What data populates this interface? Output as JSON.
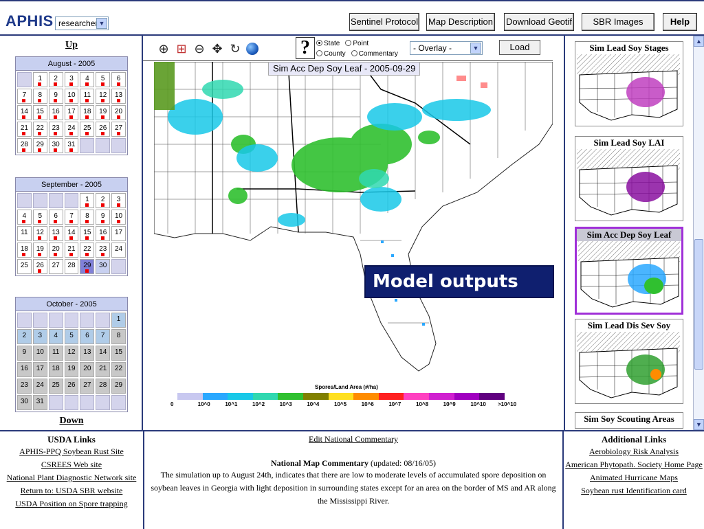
{
  "header": {
    "logo": "APHIS",
    "role_value": "researcher",
    "buttons": [
      "Sentinel Protocol",
      "Map Description",
      "Download Geotif",
      "SBR Images",
      "Help"
    ]
  },
  "left": {
    "up_label": "Up",
    "down_label": "Down",
    "calendars": [
      {
        "title": "August - 2005",
        "cells": [
          {
            "d": "",
            "t": "empty"
          },
          {
            "d": "1",
            "t": "day",
            "m": true
          },
          {
            "d": "2",
            "t": "day",
            "m": true
          },
          {
            "d": "3",
            "t": "day",
            "m": true
          },
          {
            "d": "4",
            "t": "day",
            "m": true
          },
          {
            "d": "5",
            "t": "day",
            "m": true
          },
          {
            "d": "6",
            "t": "day",
            "m": true
          },
          {
            "d": "7",
            "t": "day",
            "m": true
          },
          {
            "d": "8",
            "t": "day",
            "m": true
          },
          {
            "d": "9",
            "t": "day",
            "m": true
          },
          {
            "d": "10",
            "t": "day",
            "m": true
          },
          {
            "d": "11",
            "t": "day",
            "m": true
          },
          {
            "d": "12",
            "t": "day",
            "m": true
          },
          {
            "d": "13",
            "t": "day",
            "m": true
          },
          {
            "d": "14",
            "t": "day",
            "m": true
          },
          {
            "d": "15",
            "t": "day",
            "m": true
          },
          {
            "d": "16",
            "t": "day",
            "m": true
          },
          {
            "d": "17",
            "t": "day",
            "m": true
          },
          {
            "d": "18",
            "t": "day",
            "m": true
          },
          {
            "d": "19",
            "t": "day",
            "m": true
          },
          {
            "d": "20",
            "t": "day",
            "m": true
          },
          {
            "d": "21",
            "t": "day",
            "m": true
          },
          {
            "d": "22",
            "t": "day",
            "m": true
          },
          {
            "d": "23",
            "t": "day",
            "m": true
          },
          {
            "d": "24",
            "t": "day",
            "m": true
          },
          {
            "d": "25",
            "t": "day",
            "m": true
          },
          {
            "d": "26",
            "t": "day",
            "m": true
          },
          {
            "d": "27",
            "t": "day",
            "m": true
          },
          {
            "d": "28",
            "t": "day",
            "m": true
          },
          {
            "d": "29",
            "t": "day",
            "m": true
          },
          {
            "d": "30",
            "t": "day",
            "m": true
          },
          {
            "d": "31",
            "t": "day",
            "m": true
          },
          {
            "d": "",
            "t": "empty"
          },
          {
            "d": "",
            "t": "empty"
          },
          {
            "d": "",
            "t": "empty"
          }
        ]
      },
      {
        "title": "September - 2005",
        "cells": [
          {
            "d": "",
            "t": "empty"
          },
          {
            "d": "",
            "t": "empty"
          },
          {
            "d": "",
            "t": "empty"
          },
          {
            "d": "",
            "t": "empty"
          },
          {
            "d": "1",
            "t": "day",
            "m": true
          },
          {
            "d": "2",
            "t": "day",
            "m": true
          },
          {
            "d": "3",
            "t": "day",
            "m": true
          },
          {
            "d": "4",
            "t": "day",
            "m": true
          },
          {
            "d": "5",
            "t": "day",
            "m": true
          },
          {
            "d": "6",
            "t": "day",
            "m": true
          },
          {
            "d": "7",
            "t": "day",
            "m": true
          },
          {
            "d": "8",
            "t": "day",
            "m": true
          },
          {
            "d": "9",
            "t": "day",
            "m": true
          },
          {
            "d": "10",
            "t": "day",
            "m": true
          },
          {
            "d": "11",
            "t": "day"
          },
          {
            "d": "12",
            "t": "day",
            "m": true
          },
          {
            "d": "13",
            "t": "day",
            "m": true
          },
          {
            "d": "14",
            "t": "day",
            "m": true
          },
          {
            "d": "15",
            "t": "day",
            "m": true
          },
          {
            "d": "16",
            "t": "day",
            "m": true
          },
          {
            "d": "17",
            "t": "day"
          },
          {
            "d": "18",
            "t": "day",
            "m": true
          },
          {
            "d": "19",
            "t": "day",
            "m": true
          },
          {
            "d": "20",
            "t": "day",
            "m": true
          },
          {
            "d": "21",
            "t": "day",
            "m": true
          },
          {
            "d": "22",
            "t": "day",
            "m": true
          },
          {
            "d": "23",
            "t": "day",
            "m": true
          },
          {
            "d": "24",
            "t": "day"
          },
          {
            "d": "25",
            "t": "day"
          },
          {
            "d": "26",
            "t": "day",
            "m": true
          },
          {
            "d": "27",
            "t": "day"
          },
          {
            "d": "28",
            "t": "day"
          },
          {
            "d": "29",
            "t": "sel",
            "m": true
          },
          {
            "d": "30",
            "t": "sel2"
          },
          {
            "d": "",
            "t": "empty"
          }
        ]
      },
      {
        "title": "October - 2005",
        "cells": [
          {
            "d": "",
            "t": "empty"
          },
          {
            "d": "",
            "t": "empty"
          },
          {
            "d": "",
            "t": "empty"
          },
          {
            "d": "",
            "t": "empty"
          },
          {
            "d": "",
            "t": "empty"
          },
          {
            "d": "",
            "t": "empty"
          },
          {
            "d": "1",
            "t": "blue"
          },
          {
            "d": "2",
            "t": "blue"
          },
          {
            "d": "3",
            "t": "blue"
          },
          {
            "d": "4",
            "t": "blue"
          },
          {
            "d": "5",
            "t": "blue"
          },
          {
            "d": "6",
            "t": "blue"
          },
          {
            "d": "7",
            "t": "blue"
          },
          {
            "d": "8",
            "t": "grey"
          },
          {
            "d": "9",
            "t": "grey"
          },
          {
            "d": "10",
            "t": "grey"
          },
          {
            "d": "11",
            "t": "grey"
          },
          {
            "d": "12",
            "t": "grey"
          },
          {
            "d": "13",
            "t": "grey"
          },
          {
            "d": "14",
            "t": "grey"
          },
          {
            "d": "15",
            "t": "grey"
          },
          {
            "d": "16",
            "t": "grey"
          },
          {
            "d": "17",
            "t": "grey"
          },
          {
            "d": "18",
            "t": "grey"
          },
          {
            "d": "19",
            "t": "grey"
          },
          {
            "d": "20",
            "t": "grey"
          },
          {
            "d": "21",
            "t": "grey"
          },
          {
            "d": "22",
            "t": "grey"
          },
          {
            "d": "23",
            "t": "grey"
          },
          {
            "d": "24",
            "t": "grey"
          },
          {
            "d": "25",
            "t": "grey"
          },
          {
            "d": "26",
            "t": "grey"
          },
          {
            "d": "27",
            "t": "grey"
          },
          {
            "d": "28",
            "t": "grey"
          },
          {
            "d": "29",
            "t": "grey"
          },
          {
            "d": "30",
            "t": "grey"
          },
          {
            "d": "31",
            "t": "grey"
          },
          {
            "d": "",
            "t": "empty"
          },
          {
            "d": "",
            "t": "empty"
          },
          {
            "d": "",
            "t": "empty"
          },
          {
            "d": "",
            "t": "empty"
          },
          {
            "d": "",
            "t": "empty"
          }
        ]
      }
    ]
  },
  "toolbar": {
    "icons": [
      "zoom-in-icon",
      "zoom-box-icon",
      "zoom-out-icon",
      "pan-icon",
      "refresh-icon",
      "globe-icon"
    ],
    "help_glyph": "?",
    "radio_state": "State",
    "radio_point": "Point",
    "radio_county": "County",
    "radio_commentary": "Commentary",
    "overlay_value": "- Overlay -",
    "load_label": "Load"
  },
  "map": {
    "title": "Sim Acc Dep Soy Leaf - 2005-09-29",
    "legend_title": "Spores/Land Area (#/ha)",
    "legend_ticks": [
      "0",
      "10^0",
      "10^1",
      "10^2",
      "10^3",
      "10^4",
      "10^5",
      "10^6",
      "10^7",
      "10^8",
      "10^9",
      "10^10",
      ">10^10"
    ],
    "legend_colors": [
      "#c8c8f0",
      "#2aa8ff",
      "#18c8e8",
      "#30d8b0",
      "#30c030",
      "#808000",
      "#ffe020",
      "#ff8c00",
      "#ff2020",
      "#ff40c0",
      "#d020d0",
      "#a000c0",
      "#600080"
    ],
    "callout": "Model outputs"
  },
  "right": {
    "thumbs": [
      "Sim Lead Soy Stages",
      "Sim Lead Soy LAI",
      "Sim Acc Dep Soy Leaf",
      "Sim Lead Dis Sev Soy",
      "Sim Soy Scouting Areas"
    ]
  },
  "bottom": {
    "usda_title": "USDA Links",
    "usda_links": [
      "APHIS-PPQ Soybean Rust Site",
      "CSREES Web site",
      "National Plant Diagnostic Network site",
      "Return to: USDA SBR website",
      "USDA Position on Spore trapping"
    ],
    "edit_link": "Edit National Commentary",
    "commentary_title": "National Map Commentary",
    "commentary_updated": "(updated: 08/16/05)",
    "commentary_body": "The simulation up to August 24th, indicates that there are low to moderate levels of accumulated spore deposition on soybean leaves in Georgia with light deposition in surrounding states except for an area on the border of MS and AR along the Mississippi River.",
    "additional_title": "Additional Links",
    "additional_links": [
      "Aerobiology Risk Analysis",
      "American Phytopath. Society Home Page",
      "Animated Hurricane Maps",
      "Soybean rust Identification card"
    ]
  }
}
